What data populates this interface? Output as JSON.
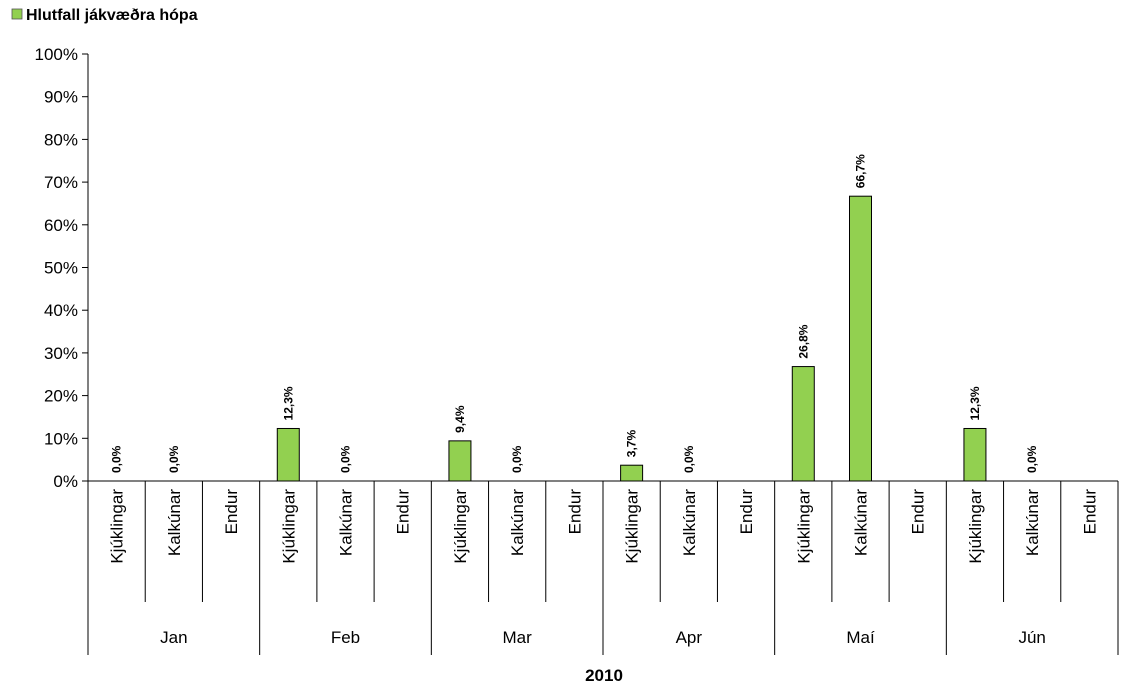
{
  "chart_data": {
    "type": "bar",
    "x_label": "2010",
    "categories": [
      "Kjúklingar",
      "Kalkúnar",
      "Endur",
      "Kjúklingar",
      "Kalkúnar",
      "Endur",
      "Kjúklingar",
      "Kalkúnar",
      "Endur",
      "Kjúklingar",
      "Kalkúnar",
      "Endur",
      "Kjúklingar",
      "Kalkúnar",
      "Endur",
      "Kjúklingar",
      "Kalkúnar",
      "Endur"
    ],
    "groups": [
      "Jan",
      "Feb",
      "Mar",
      "Apr",
      "Maí",
      "Jún"
    ],
    "series": [
      {
        "name": "Hlutfall jákvæðra hópa",
        "color": "#92d050",
        "values": [
          0,
          0,
          null,
          12.3,
          0,
          null,
          9.4,
          0,
          null,
          3.7,
          0,
          null,
          26.8,
          66.7,
          null,
          12.3,
          0,
          null
        ],
        "value_labels": [
          "0,0%",
          "0,0%",
          null,
          "12,3%",
          "0,0%",
          null,
          "9,4%",
          "0,0%",
          null,
          "3,7%",
          "0,0%",
          null,
          "26,8%",
          "66,7%",
          null,
          "12,3%",
          "0,0%",
          null
        ]
      }
    ],
    "ylim": [
      0,
      100
    ],
    "yticks": [
      {
        "value": 0,
        "label": "0%"
      },
      {
        "value": 10,
        "label": "10%"
      },
      {
        "value": 20,
        "label": "20%"
      },
      {
        "value": 30,
        "label": "30%"
      },
      {
        "value": 40,
        "label": "40%"
      },
      {
        "value": 50,
        "label": "50%"
      },
      {
        "value": 60,
        "label": "60%"
      },
      {
        "value": 70,
        "label": "70%"
      },
      {
        "value": 80,
        "label": "80%"
      },
      {
        "value": 90,
        "label": "90%"
      },
      {
        "value": 100,
        "label": "100%"
      }
    ],
    "legend": "top-left"
  }
}
